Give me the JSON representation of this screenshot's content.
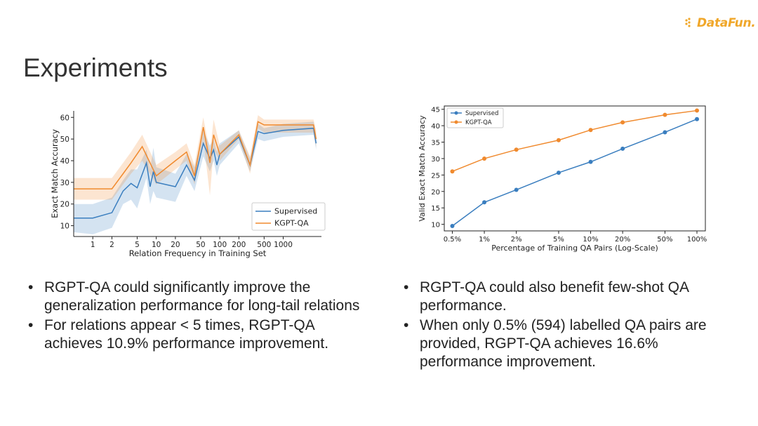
{
  "logo": {
    "text": "DataFun."
  },
  "title": "Experiments",
  "bullets_left": [
    "RGPT-QA could significantly improve the generalization performance for long-tail relations",
    "For relations appear < 5 times, RGPT-QA achieves 10.9% performance improvement."
  ],
  "bullets_right": [
    "RGPT-QA could also benefit few-shot QA performance.",
    "When only 0.5% (594) labelled QA pairs are provided, RGPT-QA achieves 16.6% performance improvement."
  ],
  "colors": {
    "supervised": "#3a7ebf",
    "kgpt": "#f08a2e",
    "logo": "#f0a72a"
  },
  "chart_data": [
    {
      "type": "line",
      "xscale": "log",
      "xlabel": "Relation Frequency in Training Set",
      "ylabel": "Exact Match Accuracy",
      "xlim": [
        0.5,
        4000
      ],
      "ylim": [
        5,
        63
      ],
      "xticks": [
        1,
        2,
        5,
        10,
        20,
        50,
        100,
        200,
        500,
        1000
      ],
      "xtick_labels": [
        "1",
        "2",
        "5",
        "10",
        "20",
        "50",
        "100",
        "200",
        "500",
        "1000"
      ],
      "yticks": [
        10,
        20,
        30,
        40,
        50,
        60
      ],
      "legend_position": "lower-right",
      "series": [
        {
          "name": "Supervised",
          "x": [
            0.5,
            1,
            2,
            3,
            4,
            5,
            7,
            8,
            9,
            10,
            20,
            30,
            40,
            55,
            70,
            80,
            90,
            100,
            200,
            300,
            400,
            500,
            1000,
            3000,
            3300
          ],
          "y": [
            13.5,
            13.5,
            16,
            26,
            29.5,
            27.5,
            39,
            28,
            35,
            30,
            28,
            38,
            31,
            48,
            41,
            45,
            38,
            43,
            51,
            38,
            53.5,
            52.5,
            54,
            55,
            48
          ],
          "lower": [
            7,
            6,
            9,
            20,
            22,
            18,
            32,
            20,
            26,
            23,
            21,
            33,
            26,
            42,
            35,
            40,
            33,
            38,
            48,
            35,
            50,
            49,
            51,
            52,
            45
          ],
          "upper": [
            20,
            20,
            23,
            31,
            36,
            36,
            45,
            36,
            46,
            37,
            34,
            43,
            37,
            54,
            47,
            50,
            44,
            48,
            54,
            41,
            57,
            55,
            57,
            58,
            52
          ]
        },
        {
          "name": "KGPT-QA",
          "x": [
            0.5,
            1,
            2,
            3,
            4,
            6,
            10,
            20,
            30,
            40,
            55,
            70,
            80,
            100,
            200,
            300,
            400,
            500,
            1000,
            3000,
            3300
          ],
          "y": [
            27,
            27,
            27,
            34,
            39,
            46.5,
            33,
            40,
            44,
            33,
            55.5,
            39,
            52,
            43,
            52,
            38,
            58,
            56.5,
            56.5,
            56.5,
            50
          ],
          "lower": [
            22,
            22,
            22,
            29,
            34,
            40,
            29,
            36,
            40,
            29,
            50,
            24,
            45,
            40,
            50,
            34,
            55,
            53,
            53,
            53,
            46
          ],
          "upper": [
            32,
            32,
            32,
            39,
            44,
            52,
            38,
            44,
            48,
            38,
            60,
            44,
            59,
            47,
            54,
            42,
            61,
            59,
            59,
            59,
            54
          ]
        }
      ]
    },
    {
      "type": "line",
      "xscale": "log",
      "xlabel": "Percentage of Training QA Pairs (Log-Scale)",
      "ylabel": "Valid Exact Match Accuracy",
      "xlim": [
        0.42,
        120
      ],
      "ylim": [
        8,
        46
      ],
      "xticks": [
        0.5,
        1,
        2,
        5,
        10,
        20,
        50,
        100
      ],
      "xtick_labels": [
        "0.5%",
        "1%",
        "2%",
        "5%",
        "10%",
        "20%",
        "50%",
        "100%"
      ],
      "yticks": [
        10,
        15,
        20,
        25,
        30,
        35,
        40,
        45
      ],
      "legend_position": "top-left",
      "series": [
        {
          "name": "Supervised",
          "x": [
            0.5,
            1,
            2,
            5,
            10,
            20,
            50,
            100
          ],
          "y": [
            9.5,
            16.7,
            20.5,
            25.7,
            29,
            33,
            38,
            42
          ]
        },
        {
          "name": "KGPT-QA",
          "x": [
            0.5,
            1,
            2,
            5,
            10,
            20,
            50,
            100
          ],
          "y": [
            26.1,
            30,
            32.7,
            35.6,
            38.7,
            41,
            43.3,
            44.6
          ]
        }
      ]
    }
  ]
}
